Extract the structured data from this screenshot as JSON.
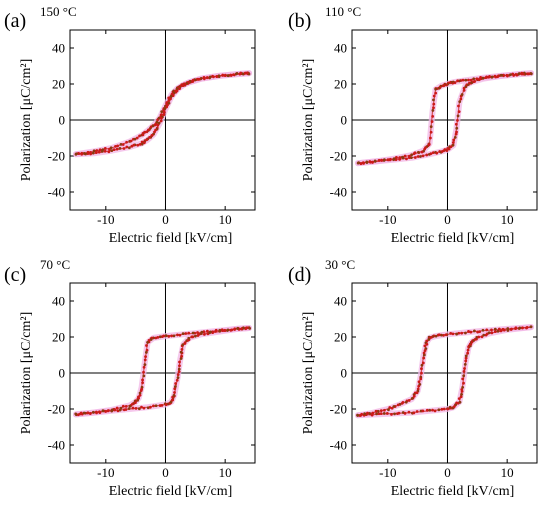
{
  "figure": {
    "panels": [
      {
        "letter": "(a)",
        "temperature": "150 °C"
      },
      {
        "letter": "(b)",
        "temperature": "110 °C"
      },
      {
        "letter": "(c)",
        "temperature": "70 °C"
      },
      {
        "letter": "(d)",
        "temperature": "30 °C"
      }
    ]
  },
  "colors": {
    "trace": "#cc1a1a",
    "trace_dark": "#8b3a10",
    "halo": "#f2b6e6",
    "axis": "#000000"
  },
  "chart_data": [
    {
      "type": "scatter",
      "panel": "(a)",
      "title": "150 °C",
      "xlabel": "Electric field [kV/cm]",
      "ylabel": "Polarization [μC/cm²]",
      "xlim": [
        -16,
        15
      ],
      "ylim": [
        -50,
        50
      ],
      "xticks": [
        -10,
        0,
        10
      ],
      "yticks": [
        -40,
        -20,
        0,
        20,
        40
      ],
      "grid": false,
      "series": [
        {
          "branch": "ascending",
          "x": [
            -15,
            -12,
            -9,
            -6,
            -4,
            -3,
            -2,
            -1,
            0,
            1,
            2,
            3,
            4,
            6,
            9,
            12,
            14
          ],
          "y": [
            -19,
            -17.5,
            -15.5,
            -12,
            -8.5,
            -6,
            -3,
            1,
            8,
            14,
            17.5,
            19.5,
            21,
            23,
            24.5,
            25.5,
            26
          ]
        },
        {
          "branch": "descending",
          "x": [
            14,
            12,
            9,
            6,
            4,
            3,
            2,
            1,
            0,
            -1,
            -2,
            -3,
            -4,
            -6,
            -9,
            -12,
            -15
          ],
          "y": [
            26,
            25.5,
            24.5,
            23,
            21,
            19.5,
            17,
            13,
            6,
            -2,
            -8,
            -11,
            -13,
            -15,
            -17,
            -18.5,
            -19
          ]
        }
      ]
    },
    {
      "type": "scatter",
      "panel": "(b)",
      "title": "110 °C",
      "xlabel": "Electric field [kV/cm]",
      "ylabel": "Polarization [μC/cm²]",
      "xlim": [
        -16,
        15
      ],
      "ylim": [
        -50,
        50
      ],
      "xticks": [
        -10,
        0,
        10
      ],
      "yticks": [
        -40,
        -20,
        0,
        20,
        40
      ],
      "grid": false,
      "series": [
        {
          "branch": "ascending",
          "x": [
            -15,
            -12,
            -9,
            -6,
            -3,
            -1,
            0,
            1,
            1.5,
            2,
            3,
            4,
            6,
            9,
            12,
            14
          ],
          "y": [
            -24,
            -23,
            -22,
            -21,
            -19,
            -17.5,
            -16.5,
            -14,
            -5,
            10,
            19,
            21,
            23,
            24.5,
            25.5,
            26
          ]
        },
        {
          "branch": "descending",
          "x": [
            14,
            12,
            9,
            6,
            3,
            1,
            0,
            -1,
            -2,
            -2.5,
            -3,
            -4,
            -6,
            -9,
            -12,
            -15
          ],
          "y": [
            26,
            25.5,
            24.5,
            23.5,
            22,
            21,
            20,
            19,
            17,
            5,
            -13,
            -17,
            -19.5,
            -21.5,
            -23,
            -24
          ]
        }
      ]
    },
    {
      "type": "scatter",
      "panel": "(c)",
      "title": "70 °C",
      "xlabel": "Electric field [kV/cm]",
      "ylabel": "Polarization [μC/cm²]",
      "xlim": [
        -16,
        15
      ],
      "ylim": [
        -50,
        50
      ],
      "xticks": [
        -10,
        0,
        10
      ],
      "yticks": [
        -40,
        -20,
        0,
        20,
        40
      ],
      "grid": false,
      "series": [
        {
          "branch": "ascending",
          "x": [
            -15,
            -12,
            -9,
            -6,
            -3,
            0,
            1,
            1.5,
            2,
            2.5,
            3,
            4,
            6,
            9,
            12,
            14
          ],
          "y": [
            -23,
            -22,
            -21,
            -20,
            -19,
            -17.5,
            -16,
            -12,
            -3,
            8,
            16,
            19.5,
            21.5,
            23,
            24.5,
            25
          ]
        },
        {
          "branch": "descending",
          "x": [
            14,
            12,
            9,
            6,
            3,
            0,
            -2,
            -3,
            -3.5,
            -4,
            -4.5,
            -5,
            -6,
            -9,
            -12,
            -15
          ],
          "y": [
            25,
            24.5,
            23.5,
            22.5,
            21.5,
            20.5,
            19.5,
            17,
            5,
            -8,
            -14,
            -16,
            -18,
            -20.5,
            -22,
            -23
          ]
        }
      ]
    },
    {
      "type": "scatter",
      "panel": "(d)",
      "title": "30 °C",
      "xlabel": "Electric field [kV/cm]",
      "ylabel": "Polarization [μC/cm²]",
      "xlim": [
        -16,
        15
      ],
      "ylim": [
        -50,
        50
      ],
      "xticks": [
        -10,
        0,
        10
      ],
      "yticks": [
        -40,
        -20,
        0,
        20,
        40
      ],
      "grid": false,
      "series": [
        {
          "branch": "ascending",
          "x": [
            -15,
            -12,
            -9,
            -6,
            -3,
            0,
            1,
            2,
            2.5,
            3,
            3.5,
            4,
            5,
            7,
            10,
            14
          ],
          "y": [
            -23.5,
            -23,
            -22.5,
            -22,
            -21,
            -20,
            -19,
            -16,
            -8,
            5,
            14,
            17,
            19.5,
            22,
            24,
            25.5
          ]
        },
        {
          "branch": "descending",
          "x": [
            14,
            10,
            6,
            3,
            0,
            -2,
            -3,
            -3.5,
            -4,
            -4.5,
            -5,
            -6,
            -8,
            -10,
            -13,
            -15
          ],
          "y": [
            25.5,
            24.5,
            23.5,
            22.5,
            21.5,
            20.5,
            19.5,
            17,
            10,
            -2,
            -10,
            -14.5,
            -17.5,
            -20,
            -22.5,
            -23.5
          ]
        }
      ]
    }
  ]
}
